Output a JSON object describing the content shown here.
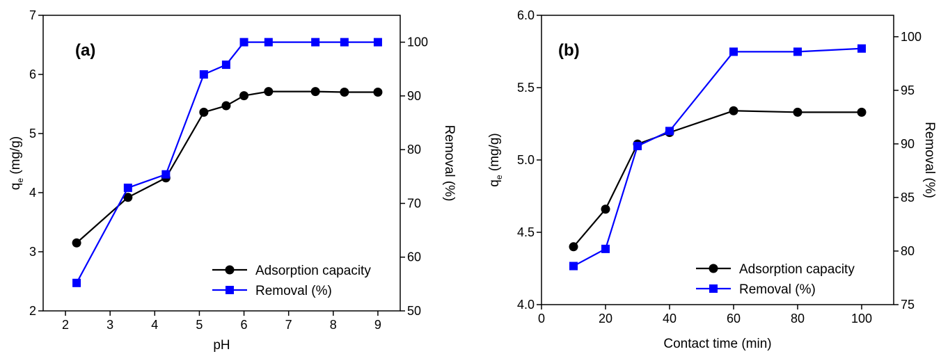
{
  "chart_data": [
    {
      "type": "line",
      "panel_label": "(a)",
      "xlabel": "pH",
      "ylabel_main": "q",
      "ylabel_sub": "e",
      "ylabel_unit": " (mg/g)",
      "ylabel_right": "Removal (%)",
      "xlim": [
        1.5,
        9.5
      ],
      "ylim": [
        2,
        7
      ],
      "y2lim": [
        50,
        105
      ],
      "xticks": [
        2,
        3,
        4,
        5,
        6,
        7,
        8,
        9
      ],
      "yticks": [
        2,
        3,
        4,
        5,
        6,
        7
      ],
      "y2ticks": [
        50,
        60,
        70,
        80,
        90,
        100
      ],
      "legend_position": "bottom-right",
      "series": [
        {
          "name": "Adsorption capacity",
          "axis": "left",
          "marker": "circle",
          "color": "#000000",
          "x": [
            2.25,
            3.4,
            4.25,
            5.1,
            5.6,
            6.0,
            6.55,
            7.6,
            8.25,
            9.0
          ],
          "y": [
            3.15,
            3.92,
            4.25,
            5.36,
            5.47,
            5.64,
            5.71,
            5.71,
            5.7,
            5.7
          ]
        },
        {
          "name": "Removal (%)",
          "axis": "right",
          "marker": "square",
          "color": "#0000ff",
          "x": [
            2.25,
            3.4,
            4.25,
            5.1,
            5.6,
            6.0,
            6.55,
            7.6,
            8.25,
            9.0
          ],
          "y": [
            55.2,
            72.9,
            75.4,
            94.0,
            95.8,
            100.0,
            100.0,
            100.0,
            100.0,
            100.0
          ]
        }
      ]
    },
    {
      "type": "line",
      "panel_label": "(b)",
      "xlabel": "Contact time (min)",
      "ylabel_main": "q",
      "ylabel_sub": "e",
      "ylabel_unit": " (mg/g)",
      "ylabel_right": "Removal (%)",
      "xlim": [
        0,
        110
      ],
      "ylim": [
        4.0,
        6.0
      ],
      "y2lim": [
        75,
        102
      ],
      "xticks": [
        0,
        20,
        40,
        60,
        80,
        100
      ],
      "yticks": [
        "4.0",
        "4.5",
        "5.0",
        "5.5",
        "6.0"
      ],
      "y2ticks": [
        75,
        80,
        85,
        90,
        95,
        100
      ],
      "legend_position": "bottom-right",
      "series": [
        {
          "name": "Adsorption capacity",
          "axis": "left",
          "marker": "circle",
          "color": "#000000",
          "x": [
            10,
            20,
            30,
            40,
            60,
            80,
            100
          ],
          "y": [
            4.4,
            4.66,
            5.11,
            5.19,
            5.34,
            5.33,
            5.33
          ]
        },
        {
          "name": "Removal (%)",
          "axis": "right",
          "marker": "square",
          "color": "#0000ff",
          "x": [
            10,
            20,
            30,
            40,
            60,
            80,
            100
          ],
          "y": [
            78.6,
            80.2,
            89.8,
            91.2,
            98.6,
            98.6,
            98.9
          ]
        }
      ]
    }
  ]
}
